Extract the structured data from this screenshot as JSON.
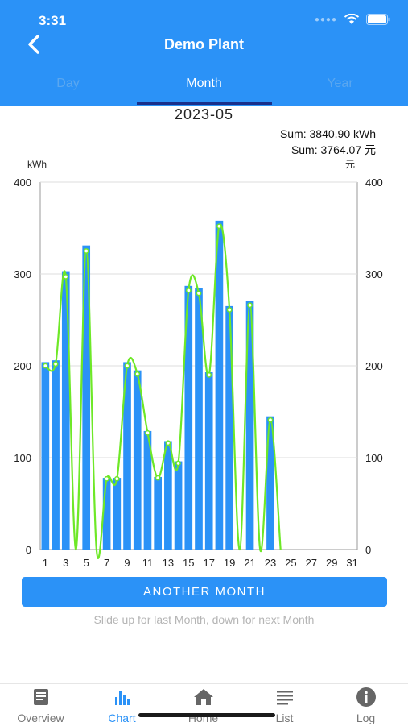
{
  "status_bar": {
    "time": "3:31"
  },
  "header": {
    "title": "Demo Plant",
    "tabs": [
      {
        "label": "Day",
        "active": false
      },
      {
        "label": "Month",
        "active": true
      },
      {
        "label": "Year",
        "active": false
      }
    ]
  },
  "period": "2023-05",
  "sums": {
    "energy": "Sum: 3840.90 kWh",
    "money": "Sum: 3764.07 元"
  },
  "chart_data": {
    "type": "bar",
    "left_unit": "kWh",
    "right_unit": "元",
    "ylim": [
      0,
      400
    ],
    "yticks": [
      0,
      100,
      200,
      300,
      400
    ],
    "xticks": [
      1,
      3,
      5,
      7,
      9,
      11,
      13,
      15,
      17,
      19,
      21,
      23,
      25,
      27,
      29,
      31
    ],
    "days": [
      1,
      2,
      3,
      4,
      5,
      6,
      7,
      8,
      9,
      10,
      11,
      12,
      13,
      14,
      15,
      16,
      17,
      18,
      19,
      20,
      21,
      22,
      23,
      24,
      25,
      26,
      27,
      28,
      29,
      30,
      31
    ],
    "series": [
      {
        "type": "bar",
        "axis": "left",
        "values": [
          204,
          206,
          303,
          0,
          331,
          0,
          78,
          78,
          204,
          195,
          129,
          79,
          118,
          96,
          287,
          285,
          193,
          358,
          265,
          0,
          271,
          0,
          145,
          0,
          0,
          0,
          0,
          0,
          0,
          0,
          0
        ]
      },
      {
        "type": "line",
        "axis": "right",
        "values": [
          200,
          202,
          297,
          0,
          325,
          0,
          77,
          77,
          200,
          191,
          127,
          78,
          116,
          94,
          282,
          279,
          190,
          352,
          261,
          0,
          266,
          0,
          141,
          0
        ]
      }
    ],
    "grid": true,
    "colors": {
      "bar": "#2b92f7",
      "line": "#6ee827"
    }
  },
  "actions": {
    "another_month": "ANOTHER MONTH",
    "hint": "Slide up for last Month, down for next Month"
  },
  "bottom_nav": [
    {
      "label": "Overview",
      "icon": "document-icon",
      "active": false
    },
    {
      "label": "Chart",
      "icon": "bar-chart-icon",
      "active": true
    },
    {
      "label": "Home",
      "icon": "home-icon",
      "active": false
    },
    {
      "label": "List",
      "icon": "list-icon",
      "active": false
    },
    {
      "label": "Log",
      "icon": "info-icon",
      "active": false
    }
  ]
}
